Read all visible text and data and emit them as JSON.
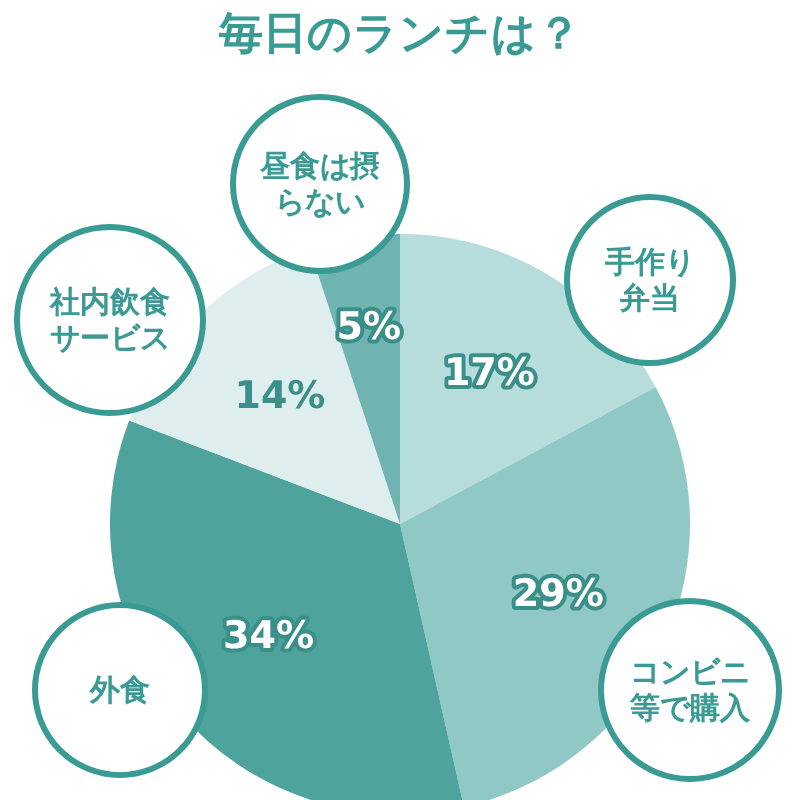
{
  "chart_data": {
    "type": "pie",
    "title": "毎日のランチは？",
    "categories": [
      "手作り弁当",
      "コンビニ等で購入",
      "外食",
      "社内飲食サービス",
      "昼食は摂らない"
    ],
    "values": [
      17,
      29,
      34,
      14,
      5
    ],
    "colors": [
      "#b7dcdc",
      "#8fc8c4",
      "#4ea39d",
      "#deeeee",
      "#6fb4b0"
    ],
    "value_labels": [
      "17%",
      "29%",
      "34%",
      "14%",
      "5%"
    ]
  }
}
